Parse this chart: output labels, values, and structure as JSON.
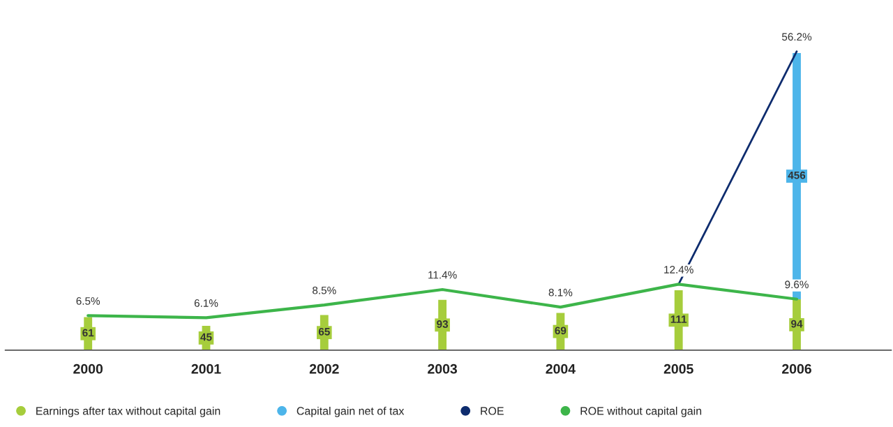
{
  "chart_data": {
    "type": "bar",
    "stacked": true,
    "categories": [
      "2000",
      "2001",
      "2002",
      "2003",
      "2004",
      "2005",
      "2006"
    ],
    "series": [
      {
        "name": "Earnings after tax without capital gain",
        "color": "#a6cd3c",
        "values": [
          61,
          45,
          65,
          93,
          69,
          111,
          94
        ],
        "value_labels": [
          "61",
          "45",
          "65",
          "93",
          "69",
          "111",
          "94"
        ]
      },
      {
        "name": "Capital gain net of tax",
        "color": "#4db5ea",
        "values": [
          null,
          null,
          null,
          null,
          null,
          null,
          456
        ],
        "value_labels": [
          null,
          null,
          null,
          null,
          null,
          null,
          "456"
        ]
      },
      {
        "name": "ROE",
        "type": "line",
        "axis": "y2",
        "color": "#0e2c6e",
        "values": [
          null,
          null,
          null,
          null,
          null,
          12.4,
          56.2
        ],
        "value_labels": [
          null,
          null,
          null,
          null,
          null,
          null,
          "56.2%"
        ]
      },
      {
        "name": "ROE without capital gain",
        "type": "line",
        "axis": "y2",
        "color": "#3db54a",
        "values": [
          6.5,
          6.1,
          8.5,
          11.4,
          8.1,
          12.4,
          9.6
        ],
        "value_labels": [
          "6.5%",
          "6.1%",
          "8.5%",
          "11.4%",
          "8.1%",
          "12.4%",
          "9.6%"
        ]
      }
    ],
    "tick_labels": "x",
    "legend": "bottom",
    "grid": false,
    "marker": "none",
    "line_style": "solid"
  }
}
